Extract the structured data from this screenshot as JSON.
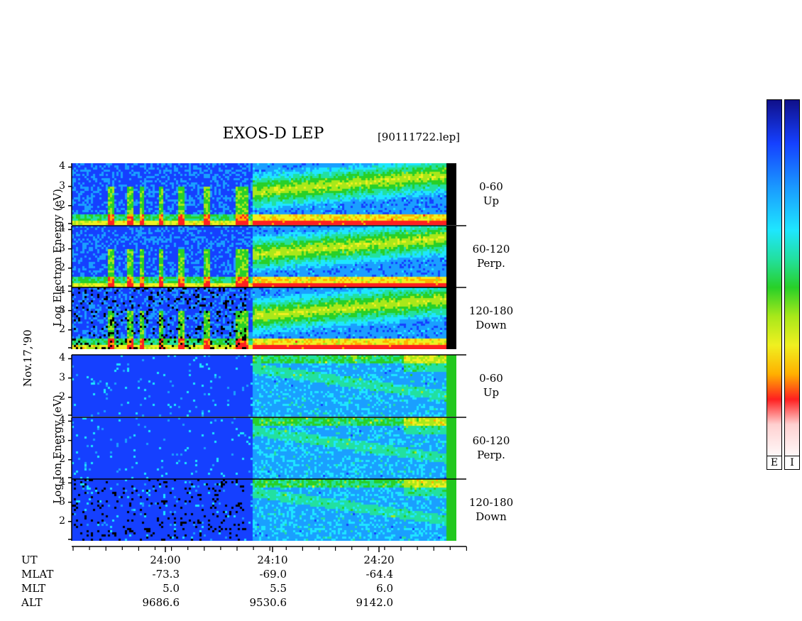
{
  "title": "EXOS-D LEP",
  "file_label": "[90111722.lep]",
  "date_label": "Nov.17,'90",
  "electron_ylabel": "Log  Electron  Energy (eV)",
  "ion_ylabel": "Log   Ion   Energy (eV)",
  "colors": {
    "spectrum": [
      "#10108a",
      "#1540ff",
      "#1a9fff",
      "#1ee6ff",
      "#22e0a0",
      "#28d028",
      "#a8e81a",
      "#f0f020",
      "#ffb000",
      "#ff2020",
      "#ffffff"
    ]
  },
  "chart_data": {
    "type": "heatmap",
    "panels": [
      {
        "group": "electron",
        "label_top": "0-60",
        "label_bottom": "Up",
        "y_ticks": [
          "4",
          "3",
          "2"
        ]
      },
      {
        "group": "electron",
        "label_top": "60-120",
        "label_bottom": "Perp.",
        "y_ticks": [
          "4",
          "3",
          "2"
        ]
      },
      {
        "group": "electron",
        "label_top": "120-180",
        "label_bottom": "Down",
        "y_ticks": [
          "4",
          "3",
          "2"
        ]
      },
      {
        "group": "ion",
        "label_top": "0-60",
        "label_bottom": "Up",
        "y_ticks": [
          "4",
          "3",
          "2"
        ]
      },
      {
        "group": "ion",
        "label_top": "60-120",
        "label_bottom": "Perp.",
        "y_ticks": [
          "4",
          "3",
          "2"
        ]
      },
      {
        "group": "ion",
        "label_top": "120-180",
        "label_bottom": "Down",
        "y_ticks": [
          "4",
          "3",
          "2"
        ]
      }
    ],
    "ylim": [
      1,
      4.2
    ],
    "x_ticks": [
      {
        "UT": "24:00",
        "MLAT": "-73.3",
        "MLT": "5.0",
        "ALT": "9686.6"
      },
      {
        "UT": "24:10",
        "MLAT": "-69.0",
        "MLT": "5.5",
        "ALT": "9530.6"
      },
      {
        "UT": "24:20",
        "MLAT": "-64.4",
        "MLT": "6.0",
        "ALT": "9142.0"
      }
    ],
    "row_labels": [
      "UT",
      "MLAT",
      "MLT",
      "ALT"
    ],
    "colorbar_labels": [
      "E",
      "I"
    ]
  }
}
